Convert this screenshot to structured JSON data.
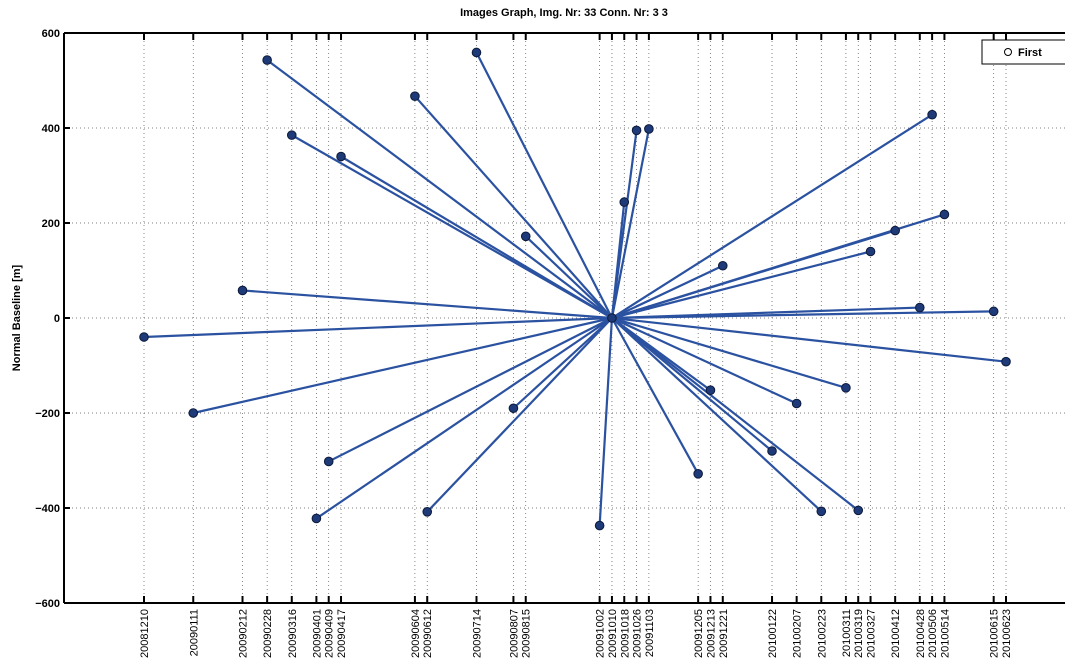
{
  "chart_data": {
    "type": "scatter",
    "title": "Images Graph, Img. Nr: 33 Conn. Nr: 3 3",
    "xlabel": "",
    "ylabel": "Normal Baseline [m]",
    "ylim": [
      -600,
      600
    ],
    "yticks": [
      600,
      400,
      200,
      0,
      -200,
      -400,
      -600
    ],
    "ytick_labels": [
      "600",
      "400",
      "200",
      "0",
      "−200",
      "−400",
      "−600"
    ],
    "grid": true,
    "legend": {
      "placement": "top-right",
      "entries": [
        "First"
      ]
    },
    "colors": {
      "line": "#2b52a0",
      "marker_fill": "#1f3a78",
      "marker_edge": "#0c1a3a"
    },
    "master": {
      "date": "20091010",
      "baseline": 0
    },
    "points": [
      {
        "date": "20081210",
        "baseline": -40
      },
      {
        "date": "20090111",
        "baseline": -200
      },
      {
        "date": "20090212",
        "baseline": 58
      },
      {
        "date": "20090228",
        "baseline": 543
      },
      {
        "date": "20090316",
        "baseline": 385
      },
      {
        "date": "20090401",
        "baseline": -422
      },
      {
        "date": "20090409",
        "baseline": -302
      },
      {
        "date": "20090417",
        "baseline": 340
      },
      {
        "date": "20090604",
        "baseline": 467
      },
      {
        "date": "20090612",
        "baseline": -408
      },
      {
        "date": "20090714",
        "baseline": 559
      },
      {
        "date": "20090807",
        "baseline": -190
      },
      {
        "date": "20090815",
        "baseline": 172
      },
      {
        "date": "20091002",
        "baseline": -437
      },
      {
        "date": "20091018",
        "baseline": 244
      },
      {
        "date": "20091026",
        "baseline": 395
      },
      {
        "date": "20091103",
        "baseline": 398
      },
      {
        "date": "20091205",
        "baseline": -328
      },
      {
        "date": "20091213",
        "baseline": -152
      },
      {
        "date": "20091221",
        "baseline": 110
      },
      {
        "date": "20100122",
        "baseline": -280
      },
      {
        "date": "20100207",
        "baseline": -180
      },
      {
        "date": "20100223",
        "baseline": -407
      },
      {
        "date": "20100311",
        "baseline": -147
      },
      {
        "date": "20100319",
        "baseline": -405
      },
      {
        "date": "20100327",
        "baseline": 140
      },
      {
        "date": "20100412",
        "baseline": 184
      },
      {
        "date": "20100428",
        "baseline": 22
      },
      {
        "date": "20100506",
        "baseline": 428
      },
      {
        "date": "20100514",
        "baseline": 218
      },
      {
        "date": "20100615",
        "baseline": 14
      },
      {
        "date": "20100623",
        "baseline": -92
      }
    ],
    "xtick_labels": [
      "20081210",
      "20090111",
      "20090212",
      "20090228",
      "20090316",
      "20090401",
      "20090409",
      "20090417",
      "20090604",
      "20090612",
      "20090714",
      "20090807",
      "20090815",
      "20091002",
      "20091010",
      "20091018",
      "20091026",
      "20091103",
      "20091205",
      "20091213",
      "20091221",
      "20100122",
      "20100207",
      "20100223",
      "20100311",
      "20100319",
      "20100327",
      "20100412",
      "20100428",
      "20100506",
      "20100514",
      "20100615",
      "20100623"
    ]
  }
}
